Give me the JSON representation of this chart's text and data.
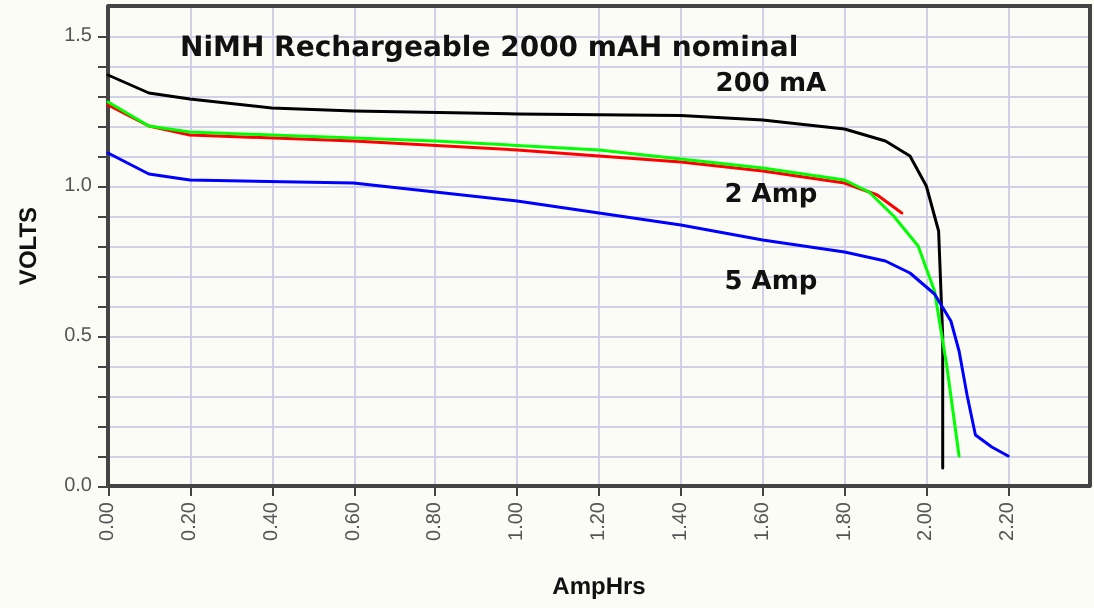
{
  "chart_data": {
    "type": "line",
    "title": "NiMH Rechargeable 2000 mAH nominal",
    "xlabel": "AmpHrs",
    "ylabel": "VOLTS",
    "xlim": [
      0,
      2.4
    ],
    "ylim": [
      0,
      1.6
    ],
    "xticks": [
      {
        "value": 0,
        "label": "0.00"
      },
      {
        "value": 0.2,
        "label": "0.20"
      },
      {
        "value": 0.4,
        "label": "0.40"
      },
      {
        "value": 0.6,
        "label": "0.60"
      },
      {
        "value": 0.8,
        "label": "0.80"
      },
      {
        "value": 1,
        "label": "1.00"
      },
      {
        "value": 1.2,
        "label": "1.20"
      },
      {
        "value": 1.4,
        "label": "1.40"
      },
      {
        "value": 1.6,
        "label": "1.60"
      },
      {
        "value": 1.8,
        "label": "1.80"
      },
      {
        "value": 2,
        "label": "2.00"
      },
      {
        "value": 2.2,
        "label": "2.20"
      }
    ],
    "yticks": [
      {
        "value": 0,
        "label": "0.0"
      },
      {
        "value": 0.1,
        "label": null
      },
      {
        "value": 0.2,
        "label": null
      },
      {
        "value": 0.3,
        "label": null
      },
      {
        "value": 0.4,
        "label": null
      },
      {
        "value": 0.5,
        "label": "0.5"
      },
      {
        "value": 0.6,
        "label": null
      },
      {
        "value": 0.7,
        "label": null
      },
      {
        "value": 0.8,
        "label": null
      },
      {
        "value": 0.9,
        "label": null
      },
      {
        "value": 1,
        "label": "1.0"
      },
      {
        "value": 1.1,
        "label": null
      },
      {
        "value": 1.2,
        "label": null
      },
      {
        "value": 1.3,
        "label": null
      },
      {
        "value": 1.4,
        "label": null
      },
      {
        "value": 1.5,
        "label": "1.5"
      }
    ],
    "grid": true,
    "marker": "none",
    "line_style": "solid",
    "series": [
      {
        "name": "200 mA",
        "color": "#000000",
        "x": [
          0,
          0.1,
          0.2,
          0.4,
          0.6,
          1.0,
          1.4,
          1.6,
          1.8,
          1.9,
          1.96,
          2.0,
          2.03,
          2.04,
          2.04
        ],
        "values": [
          1.37,
          1.31,
          1.29,
          1.26,
          1.25,
          1.24,
          1.235,
          1.22,
          1.19,
          1.15,
          1.1,
          1.0,
          0.85,
          0.5,
          0.06
        ]
      },
      {
        "color": "#ff0000",
        "x": [
          0,
          0.1,
          0.2,
          0.6,
          1.0,
          1.4,
          1.6,
          1.8,
          1.88,
          1.94
        ],
        "values": [
          1.27,
          1.2,
          1.17,
          1.15,
          1.12,
          1.08,
          1.05,
          1.01,
          0.97,
          0.91
        ]
      },
      {
        "name": "2 Amp",
        "color": "#00ff00",
        "x": [
          0,
          0.1,
          0.2,
          0.4,
          0.8,
          1.2,
          1.6,
          1.8,
          1.86,
          1.92,
          1.98,
          2.02,
          2.05,
          2.07,
          2.08
        ],
        "values": [
          1.28,
          1.2,
          1.18,
          1.17,
          1.15,
          1.12,
          1.06,
          1.02,
          0.98,
          0.9,
          0.8,
          0.65,
          0.4,
          0.2,
          0.1
        ]
      },
      {
        "name": "5 Amp",
        "color": "#0000ff",
        "x": [
          0,
          0.1,
          0.2,
          0.6,
          0.8,
          1.0,
          1.2,
          1.4,
          1.6,
          1.8,
          1.9,
          1.96,
          2.02,
          2.06,
          2.08,
          2.1,
          2.12,
          2.16,
          2.2
        ],
        "values": [
          1.11,
          1.04,
          1.02,
          1.01,
          0.98,
          0.95,
          0.91,
          0.87,
          0.82,
          0.78,
          0.75,
          0.71,
          0.64,
          0.55,
          0.45,
          0.3,
          0.17,
          0.13,
          0.1
        ]
      }
    ]
  }
}
